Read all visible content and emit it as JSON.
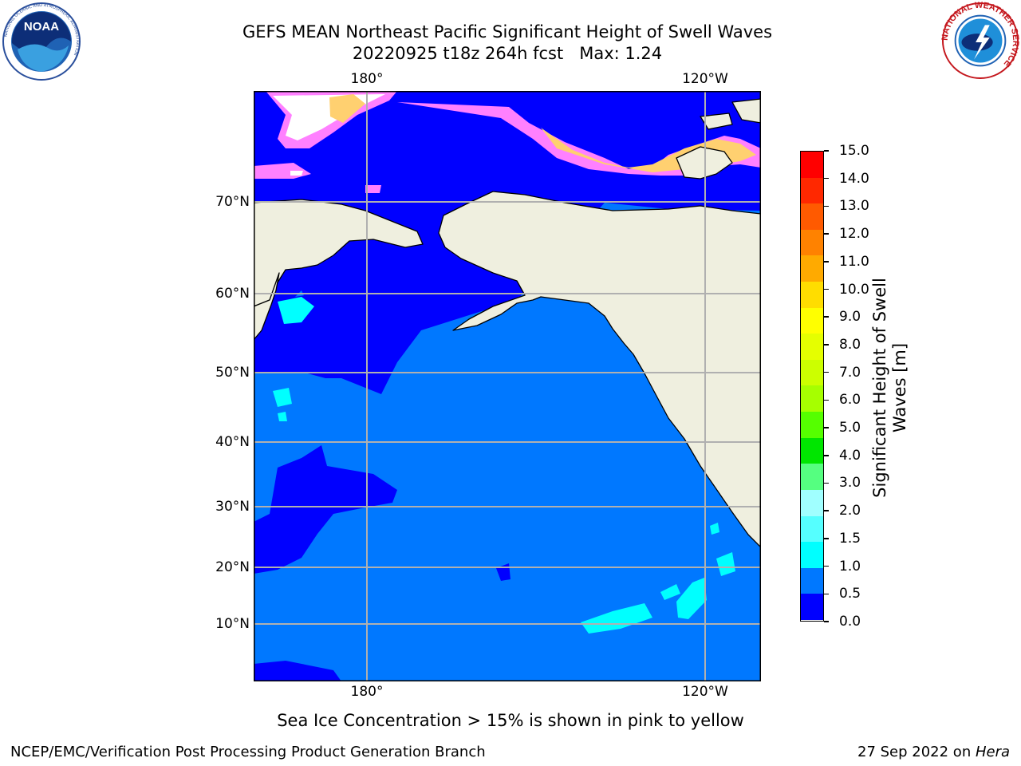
{
  "title": {
    "line1": "GEFS MEAN Northeast Pacific Significant Height of Swell Waves",
    "line2": "20220925 t18z 264h fcst   Max: 1.24"
  },
  "map": {
    "lon_labels": [
      "180°",
      "120°W"
    ],
    "lat_labels": [
      "70°N",
      "60°N",
      "50°N",
      "40°N",
      "30°N",
      "20°N",
      "10°N"
    ],
    "colors": {
      "land": "#efefdf",
      "ocean_0_05": "#0000ff",
      "ocean_05_10": "#0078ff",
      "ocean_10_15": "#00ffff",
      "sea_ice": "#ff80ff",
      "grid": "#b0b0b0"
    }
  },
  "colorbar": {
    "label": "Significant Height of Swell Waves [m]",
    "ticks": [
      "15.0",
      "14.0",
      "13.0",
      "12.0",
      "11.0",
      "10.0",
      "9.0",
      "8.0",
      "7.0",
      "6.0",
      "5.0",
      "4.0",
      "3.0",
      "2.0",
      "1.5",
      "1.0",
      "0.5",
      "0.0"
    ],
    "colors": [
      "#ff0000",
      "#ff2800",
      "#ff5a00",
      "#ff8200",
      "#ffaa00",
      "#ffdd00",
      "#ffff00",
      "#e5ff00",
      "#ccff00",
      "#a6ff00",
      "#55ff00",
      "#00e600",
      "#55ff80",
      "#a0ffff",
      "#55ffff",
      "#00ffff",
      "#0078ff",
      "#0000ff"
    ]
  },
  "caption": "Sea Ice Concentration > 15% is shown in pink to yellow",
  "footer": {
    "left": "NCEP/EMC/Verification Post Processing Product Generation Branch",
    "date": "27 Sep 2022 on ",
    "host": "Hera"
  },
  "logos": {
    "noara_text": "NOAA",
    "noaa_ring": "NATIONAL OCEANIC AND ATMOSPHERIC ADMINISTRATION",
    "noaa_ring_bottom": "U.S. DEPARTMENT OF COMMERCE",
    "nws_ring": "NATIONAL WEATHER SERVICE"
  }
}
